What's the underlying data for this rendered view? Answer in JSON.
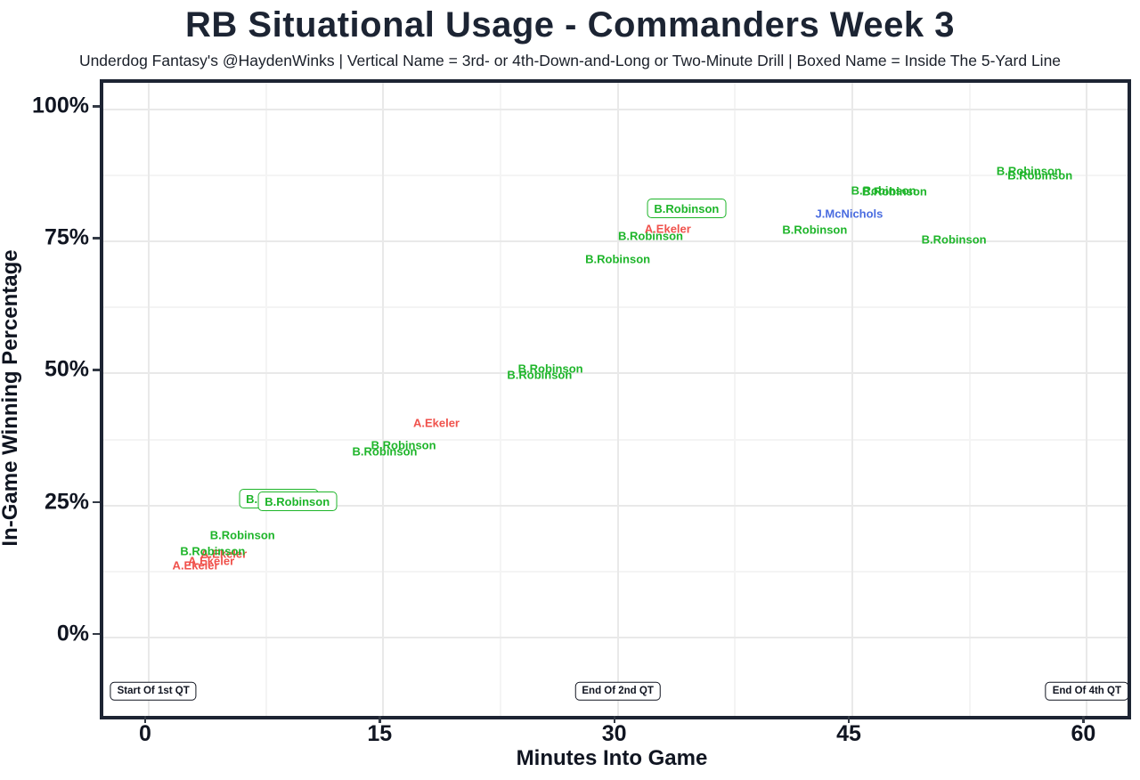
{
  "page": {
    "title": "RB Situational Usage - Commanders Week 3",
    "subtitle": "Underdog Fantasy's @HaydenWinks | Vertical Name = 3rd- or 4th-Down-and-Long or Two-Minute Drill | Boxed Name = Inside The 5-Yard Line"
  },
  "chart_data": {
    "type": "scatter",
    "title": "RB Situational Usage - Commanders Week 3",
    "subtitle": "Underdog Fantasy's @HaydenWinks | Vertical Name = 3rd- or 4th-Down-and-Long or Two-Minute Drill | Boxed Name = Inside The 5-Yard Line",
    "xlabel": "Minutes Into Game",
    "ylabel": "In-Game Winning Percentage",
    "xlim": [
      -2.9,
      62.6
    ],
    "ylim": [
      -14.9,
      105.1
    ],
    "x_ticks": [
      0,
      15,
      30,
      45,
      60
    ],
    "x_tick_labels": [
      "0",
      "15",
      "30",
      "45",
      "60"
    ],
    "y_ticks": [
      0,
      25,
      50,
      75,
      100
    ],
    "y_tick_labels": [
      "0%",
      "25%",
      "50%",
      "75%",
      "100%"
    ],
    "grid": {
      "major": true,
      "minor": true
    },
    "legend": "none",
    "point_style": "text-label",
    "colors": {
      "green": "#1eb52a",
      "red": "#f0524c",
      "blue": "#4a6ce0",
      "axis": "#1d2433"
    },
    "points": [
      {
        "name": "A.Ekeler",
        "color": "red",
        "x": 3.0,
        "y": 13.7,
        "boxed": false
      },
      {
        "name": "A.Ekeler",
        "color": "red",
        "x": 4.0,
        "y": 14.5,
        "boxed": false
      },
      {
        "name": "A.Ekeler",
        "color": "red",
        "x": 4.8,
        "y": 15.9,
        "boxed": false
      },
      {
        "name": "B.Robinson",
        "color": "green",
        "x": 4.1,
        "y": 16.4,
        "boxed": false
      },
      {
        "name": "B.Robinson",
        "color": "green",
        "x": 6.0,
        "y": 19.3,
        "boxed": false
      },
      {
        "name": "B.Robinson",
        "color": "green",
        "x": 8.3,
        "y": 26.3,
        "boxed": true
      },
      {
        "name": "B.Robinson",
        "color": "green",
        "x": 9.5,
        "y": 25.8,
        "boxed": true
      },
      {
        "name": "B.Robinson",
        "color": "green",
        "x": 15.1,
        "y": 35.3,
        "boxed": false
      },
      {
        "name": "B.Robinson",
        "color": "green",
        "x": 16.3,
        "y": 36.4,
        "boxed": false
      },
      {
        "name": "A.Ekeler",
        "color": "red",
        "x": 18.4,
        "y": 40.6,
        "boxed": false
      },
      {
        "name": "B.Robinson",
        "color": "green",
        "x": 25.0,
        "y": 49.8,
        "boxed": false
      },
      {
        "name": "B.Robinson",
        "color": "green",
        "x": 25.7,
        "y": 50.9,
        "boxed": false
      },
      {
        "name": "B.Robinson",
        "color": "green",
        "x": 30.0,
        "y": 71.7,
        "boxed": false
      },
      {
        "name": "B.Robinson",
        "color": "green",
        "x": 32.1,
        "y": 76.1,
        "boxed": false
      },
      {
        "name": "A.Ekeler",
        "color": "red",
        "x": 33.2,
        "y": 77.5,
        "boxed": false
      },
      {
        "name": "B.Robinson",
        "color": "green",
        "x": 34.4,
        "y": 81.3,
        "boxed": true
      },
      {
        "name": "B.Robinson",
        "color": "green",
        "x": 42.6,
        "y": 77.2,
        "boxed": false
      },
      {
        "name": "J.McNichols",
        "color": "blue",
        "x": 44.8,
        "y": 80.3,
        "boxed": false
      },
      {
        "name": "B.Robinson",
        "color": "green",
        "x": 47.0,
        "y": 84.7,
        "boxed": false
      },
      {
        "name": "B.Robinson",
        "color": "green",
        "x": 47.7,
        "y": 84.5,
        "boxed": false
      },
      {
        "name": "B.Robinson",
        "color": "green",
        "x": 51.5,
        "y": 75.4,
        "boxed": false
      },
      {
        "name": "B.Robinson",
        "color": "green",
        "x": 56.3,
        "y": 88.4,
        "boxed": false
      },
      {
        "name": "B.Robinson",
        "color": "green",
        "x": 57.0,
        "y": 87.6,
        "boxed": false
      }
    ],
    "annotations": [
      {
        "label": "Start Of 1st QT",
        "x": 0.3,
        "y": -10.2,
        "boxed": true
      },
      {
        "label": "End Of 2nd QT",
        "x": 30.0,
        "y": -10.2,
        "boxed": true
      },
      {
        "label": "End Of 4th QT",
        "x": 60.0,
        "y": -10.2,
        "boxed": true
      }
    ]
  }
}
